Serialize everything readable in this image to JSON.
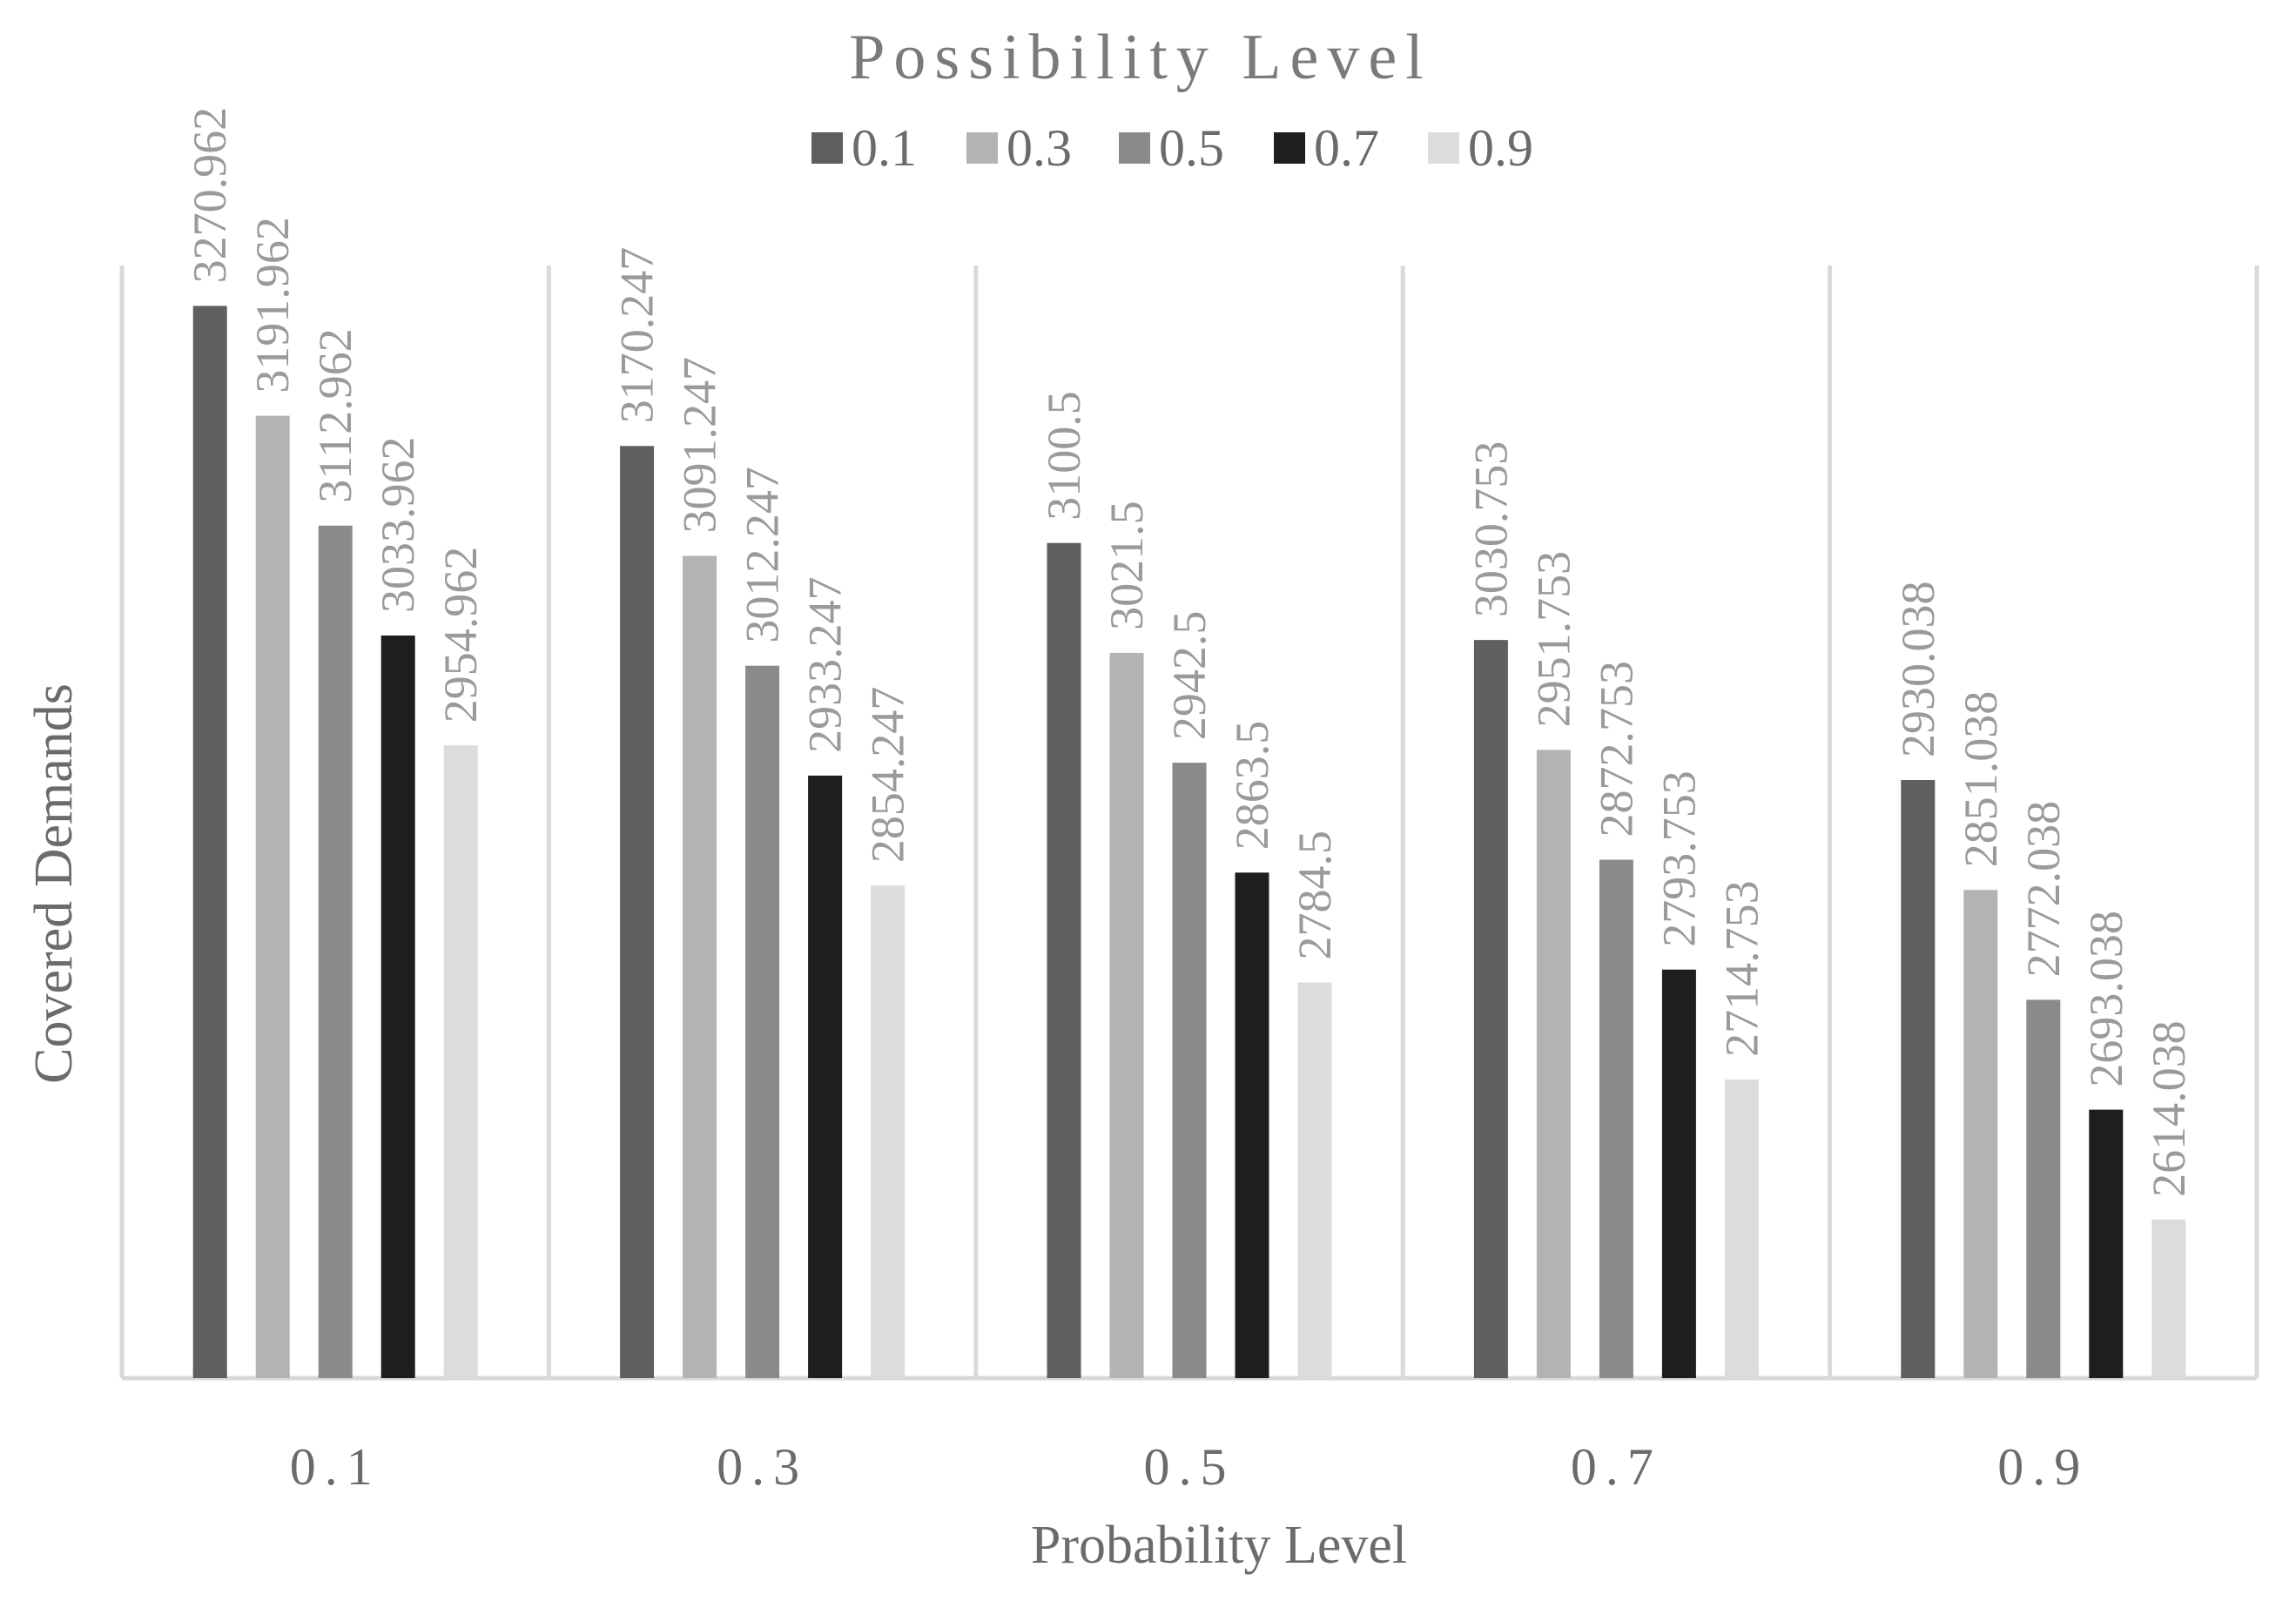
{
  "chart_data": {
    "type": "bar",
    "title": "Possibility Level",
    "xlabel": "Probability Level",
    "ylabel": "Covered Demands",
    "categories": [
      "0.1",
      "0.3",
      "0.5",
      "0.7",
      "0.9"
    ],
    "ylim": [
      2500,
      3300
    ],
    "grid": "vertical separators between categories",
    "legend_position": "top",
    "series": [
      {
        "name": "0.1",
        "color": "#5f5f5f",
        "values": [
          3270.962,
          3170.247,
          3100.5,
          3030.753,
          2930.038
        ]
      },
      {
        "name": "0.3",
        "color": "#b3b3b3",
        "values": [
          3191.962,
          3091.247,
          3021.5,
          2951.753,
          2851.038
        ]
      },
      {
        "name": "0.5",
        "color": "#8a8a8a",
        "values": [
          3112.962,
          3012.247,
          2942.5,
          2872.753,
          2772.038
        ]
      },
      {
        "name": "0.7",
        "color": "#1e1e1e",
        "values": [
          3033.962,
          2933.247,
          2863.5,
          2793.753,
          2693.038
        ]
      },
      {
        "name": "0.9",
        "color": "#dcdcdc",
        "values": [
          2954.962,
          2854.247,
          2784.5,
          2714.753,
          2614.038
        ]
      }
    ]
  }
}
